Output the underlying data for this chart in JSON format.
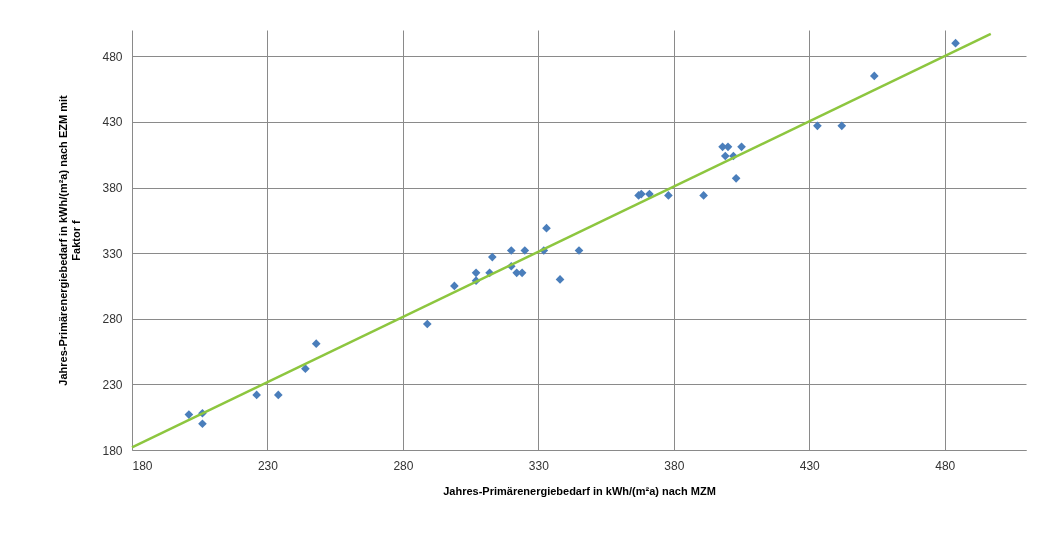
{
  "chart_data": {
    "type": "scatter",
    "xlabel": "Jahres-Primärenergiebedarf in kWh/(m²a) nach MZM",
    "ylabel": "Jahres-Primärenergiebedarf in kWh/(m²a) nach EZM mit Faktor f",
    "xlim": [
      180,
      510
    ],
    "ylim": [
      180,
      500
    ],
    "xticks": [
      180,
      230,
      280,
      330,
      380,
      430,
      480
    ],
    "yticks": [
      180,
      230,
      280,
      330,
      380,
      430,
      480
    ],
    "grid": true,
    "series": [
      {
        "color": "#4a7ebb",
        "marker": "diamond",
        "x": [
          201,
          206,
          206,
          226,
          234,
          244,
          248,
          289,
          299,
          307,
          307,
          312,
          313,
          320,
          320,
          322,
          324,
          325,
          332,
          333,
          345,
          338,
          367,
          368,
          371,
          378,
          391,
          398,
          400,
          399,
          402,
          405,
          403,
          433,
          442,
          454,
          484
        ],
        "values": [
          207,
          208,
          200,
          222,
          222,
          242,
          261,
          276,
          305,
          309,
          315,
          315,
          327,
          332,
          320,
          315,
          315,
          332,
          332,
          349,
          332,
          310,
          374,
          375,
          375,
          374,
          374,
          411,
          411,
          404,
          404,
          411,
          387,
          427,
          427,
          465,
          490
        ]
      },
      {
        "type": "line",
        "color": "#8dc63f",
        "line_style": "solid",
        "marker": "none",
        "x": [
          180,
          497
        ],
        "values": [
          182,
          497
        ]
      }
    ]
  }
}
